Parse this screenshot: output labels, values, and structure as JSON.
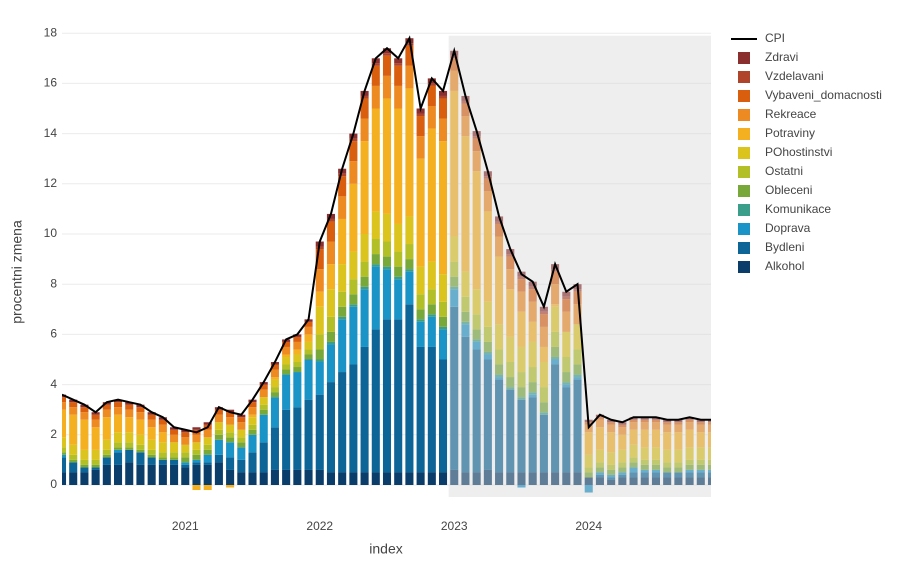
{
  "chart_data": {
    "type": "bar",
    "barmode": "relative",
    "x_title": "index",
    "y_title": "procentni zmena",
    "x": [
      "2020-02",
      "2020-03",
      "2020-04",
      "2020-05",
      "2020-06",
      "2020-07",
      "2020-08",
      "2020-09",
      "2020-10",
      "2020-11",
      "2020-12",
      "2021-01",
      "2021-02",
      "2021-03",
      "2021-04",
      "2021-05",
      "2021-06",
      "2021-07",
      "2021-08",
      "2021-09",
      "2021-10",
      "2021-11",
      "2021-12",
      "2022-01",
      "2022-02",
      "2022-03",
      "2022-04",
      "2022-05",
      "2022-06",
      "2022-07",
      "2022-08",
      "2022-09",
      "2022-10",
      "2022-11",
      "2022-12",
      "2023-01",
      "2023-02",
      "2023-03",
      "2023-04",
      "2023-05",
      "2023-06",
      "2023-07",
      "2023-08",
      "2023-09",
      "2023-10",
      "2023-11",
      "2023-12",
      "2024-01",
      "2024-02",
      "2024-03",
      "2024-04",
      "2024-05",
      "2024-06",
      "2024-07",
      "2024-08",
      "2024-09",
      "2024-10",
      "2024-11",
      "2024-12"
    ],
    "xlim": [
      "2020-02",
      "2024-12"
    ],
    "xticks": [
      {
        "value": "2021-01",
        "label": "2021"
      },
      {
        "value": "2022-01",
        "label": "2022"
      },
      {
        "value": "2023-01",
        "label": "2023"
      },
      {
        "value": "2024-01",
        "label": "2024"
      }
    ],
    "ylim": [
      -0.6,
      18.2
    ],
    "yticks": [
      0,
      2,
      4,
      6,
      8,
      10,
      12,
      14,
      16,
      18
    ],
    "grid": true,
    "shade_from": "2023-01",
    "legend": "right",
    "series": [
      {
        "name": "Alkohol",
        "color": "#0b3d6b",
        "values": [
          0.5,
          0.5,
          0.5,
          0.6,
          0.8,
          0.8,
          0.9,
          0.8,
          0.8,
          0.8,
          0.8,
          0.7,
          0.8,
          0.8,
          0.9,
          0.6,
          0.5,
          0.5,
          0.5,
          0.6,
          0.6,
          0.6,
          0.6,
          0.6,
          0.5,
          0.5,
          0.5,
          0.5,
          0.5,
          0.5,
          0.5,
          0.5,
          0.5,
          0.5,
          0.5,
          0.6,
          0.5,
          0.5,
          0.6,
          0.5,
          0.5,
          0.5,
          0.5,
          0.5,
          0.5,
          0.5,
          0.5,
          0.3,
          0.3,
          0.2,
          0.3,
          0.3,
          0.3,
          0.3,
          0.3,
          0.3,
          0.3,
          0.3,
          0.3
        ]
      },
      {
        "name": "Bydleni",
        "color": "#0d6496",
        "values": [
          0.6,
          0.4,
          0.2,
          0.1,
          0.3,
          0.5,
          0.5,
          0.5,
          0.3,
          0.2,
          0.2,
          0.1,
          0.1,
          0.1,
          0.3,
          0.5,
          0.5,
          0.8,
          1.2,
          1.7,
          2.4,
          2.5,
          2.8,
          3.0,
          3.6,
          4.0,
          4.3,
          5.0,
          5.7,
          6.1,
          6.1,
          6.7,
          5.0,
          5.0,
          4.5,
          6.5,
          5.4,
          4.9,
          4.4,
          3.7,
          3.3,
          2.9,
          3.0,
          2.3,
          4.3,
          3.4,
          3.7,
          0.0,
          0.1,
          0.1,
          0.1,
          0.2,
          0.2,
          0.2,
          0.2,
          0.2,
          0.2,
          0.2,
          0.2
        ]
      },
      {
        "name": "Doprava",
        "color": "#1a93c6",
        "values": [
          0.1,
          0,
          0,
          0,
          0,
          0.1,
          0,
          0,
          0,
          0,
          0,
          0.1,
          0.1,
          0.3,
          0.6,
          0.6,
          0.5,
          0.7,
          1.1,
          1.2,
          1.4,
          1.4,
          1.6,
          1.3,
          1.5,
          2.1,
          2.3,
          2.3,
          2.5,
          2.0,
          1.6,
          1.3,
          1.0,
          1.2,
          1.2,
          0.7,
          0.5,
          0.3,
          0.2,
          0.1,
          0,
          -0.1,
          0.1,
          0,
          0.2,
          0.1,
          0.1,
          -0.3,
          0.1,
          0.1,
          0.1,
          0.2,
          0.1,
          0.1,
          0,
          0,
          0.1,
          0.1,
          0.1
        ]
      },
      {
        "name": "Komunikace",
        "color": "#3a9e8a",
        "values": [
          0,
          0,
          0,
          0,
          0,
          0,
          0,
          0,
          0,
          0,
          0,
          0,
          0,
          0,
          0,
          0,
          0,
          0,
          0,
          0,
          0,
          0,
          0,
          0.1,
          0.1,
          0.1,
          0.1,
          0.1,
          0.1,
          0.1,
          0.1,
          0.1,
          0.1,
          0.1,
          0.1,
          0.1,
          0.1,
          0.1,
          0.1,
          0.1,
          0.1,
          0.1,
          0.1,
          0.1,
          0.1,
          0.1,
          0.1,
          0,
          0,
          0,
          0,
          0,
          0,
          0,
          0,
          0,
          0,
          0,
          0
        ]
      },
      {
        "name": "Obleceni",
        "color": "#78a83a",
        "values": [
          0.1,
          0.1,
          0.1,
          0.1,
          0.1,
          0.1,
          0.1,
          0.1,
          0.1,
          0.1,
          0.1,
          0.2,
          0.2,
          0.2,
          0.2,
          0.2,
          0.2,
          0.2,
          0.2,
          0.2,
          0.2,
          0.2,
          0.2,
          0.4,
          0.4,
          0.4,
          0.4,
          0.4,
          0.4,
          0.4,
          0.4,
          0.4,
          0.4,
          0.4,
          0.4,
          0.4,
          0.4,
          0.4,
          0.4,
          0.4,
          0.4,
          0.4,
          0.4,
          0.4,
          0.4,
          0.4,
          0.4,
          0.2,
          0.2,
          0.2,
          0.2,
          0.2,
          0.2,
          0.2,
          0.2,
          0.2,
          0.2,
          0.2,
          0.2
        ]
      },
      {
        "name": "Ostatni",
        "color": "#b2bf26",
        "values": [
          0.2,
          0.2,
          0.2,
          0.2,
          0.2,
          0.2,
          0.2,
          0.2,
          0.2,
          0.2,
          0.2,
          0.2,
          0.2,
          0.2,
          0.2,
          0.2,
          0.2,
          0.2,
          0.2,
          0.2,
          0.2,
          0.2,
          0.2,
          0.6,
          0.6,
          0.6,
          0.6,
          0.6,
          0.6,
          0.6,
          0.6,
          0.6,
          0.6,
          0.6,
          0.6,
          0.6,
          0.6,
          0.6,
          0.6,
          0.6,
          0.6,
          0.6,
          0.6,
          0.6,
          0.6,
          0.6,
          0.6,
          0.2,
          0.2,
          0.2,
          0.2,
          0.2,
          0.2,
          0.2,
          0.2,
          0.2,
          0.2,
          0.2,
          0.2
        ]
      },
      {
        "name": "POhostinstvi",
        "color": "#dcc41f",
        "values": [
          0.4,
          0.4,
          0.4,
          0.4,
          0.4,
          0.4,
          0.4,
          0.4,
          0.4,
          0.4,
          0.4,
          0.3,
          0.3,
          0.3,
          0.3,
          0.3,
          0.3,
          0.3,
          0.3,
          0.3,
          0.3,
          0.3,
          0.3,
          1.1,
          1.1,
          1.1,
          1.1,
          1.1,
          1.1,
          1.1,
          1.1,
          1.1,
          1.1,
          1.1,
          1.1,
          1.0,
          1.0,
          1.0,
          1.0,
          1.0,
          1.0,
          1.0,
          1.0,
          1.0,
          1.0,
          1.0,
          1.0,
          0.5,
          0.5,
          0.5,
          0.5,
          0.5,
          0.5,
          0.5,
          0.5,
          0.5,
          0.5,
          0.5,
          0.5
        ]
      },
      {
        "name": "Potraviny",
        "color": "#f5b021",
        "values": [
          1.1,
          1.2,
          1.2,
          0.9,
          0.9,
          0.7,
          0.6,
          0.6,
          0.5,
          0.4,
          0,
          0,
          -0.2,
          -0.2,
          0,
          -0.1,
          0,
          0.1,
          0,
          0.1,
          0.1,
          0.2,
          0.3,
          0.6,
          1.0,
          1.8,
          2.7,
          3.7,
          4.1,
          4.6,
          4.6,
          5.1,
          4.3,
          5.3,
          5.3,
          5.8,
          5.4,
          4.7,
          3.6,
          2.7,
          1.9,
          1.4,
          0.8,
          0.6,
          0.1,
          0,
          0,
          0.9,
          0.9,
          0.8,
          0.6,
          0.6,
          0.7,
          0.7,
          0.7,
          0.7,
          0.7,
          0.6,
          0.6
        ]
      },
      {
        "name": "Rekreace",
        "color": "#ee8a22",
        "values": [
          0.3,
          0.3,
          0.3,
          0.3,
          0.3,
          0.3,
          0.3,
          0.3,
          0.3,
          0.3,
          0.3,
          0.3,
          0.3,
          0.3,
          0.3,
          0.3,
          0.3,
          0.3,
          0.3,
          0.3,
          0.3,
          0.3,
          0.3,
          0.9,
          0.9,
          0.9,
          0.9,
          0.9,
          0.9,
          0.9,
          0.9,
          0.9,
          0.9,
          0.9,
          0.9,
          0.8,
          0.8,
          0.8,
          0.8,
          0.8,
          0.8,
          0.8,
          0.8,
          0.8,
          0.8,
          0.8,
          0.8,
          0.3,
          0.3,
          0.3,
          0.3,
          0.3,
          0.3,
          0.3,
          0.3,
          0.3,
          0.3,
          0.3,
          0.3
        ]
      },
      {
        "name": "Vybaveni_domacnosti",
        "color": "#d95f0e",
        "values": [
          0.2,
          0.2,
          0.2,
          0.2,
          0.2,
          0.2,
          0.2,
          0.2,
          0.2,
          0.2,
          0.2,
          0.2,
          0.2,
          0.2,
          0.2,
          0.2,
          0.2,
          0.2,
          0.2,
          0.2,
          0.2,
          0.2,
          0.2,
          0.8,
          0.8,
          0.8,
          0.8,
          0.8,
          0.8,
          0.8,
          0.8,
          0.8,
          0.8,
          0.8,
          0.8,
          0.5,
          0.5,
          0.5,
          0.5,
          0.5,
          0.5,
          0.5,
          0.5,
          0.5,
          0.5,
          0.5,
          0.5,
          0.1,
          0.1,
          0.1,
          0.1,
          0.1,
          0.1,
          0.1,
          0.1,
          0.1,
          0.1,
          0.1,
          0.1
        ]
      },
      {
        "name": "Vzdelavani",
        "color": "#b0442a",
        "values": [
          0,
          0,
          0,
          0,
          0,
          0,
          0,
          0,
          0,
          0,
          0,
          0,
          0,
          0,
          0,
          0,
          0,
          0,
          0,
          0,
          0,
          0,
          0,
          0.1,
          0.1,
          0.1,
          0.1,
          0.1,
          0.1,
          0.1,
          0.1,
          0.1,
          0.1,
          0.1,
          0.1,
          0.1,
          0.1,
          0.1,
          0.1,
          0.1,
          0.1,
          0.1,
          0.1,
          0.1,
          0.1,
          0.1,
          0.1,
          0,
          0,
          0,
          0,
          0,
          0,
          0,
          0,
          0,
          0,
          0,
          0
        ]
      },
      {
        "name": "Zdravi",
        "color": "#8b2e2e",
        "values": [
          0.1,
          0.1,
          0.1,
          0.1,
          0.1,
          0.1,
          0.1,
          0.1,
          0.1,
          0.1,
          0.1,
          0.1,
          0.1,
          0.1,
          0.1,
          0.1,
          0.1,
          0.1,
          0.1,
          0.1,
          0.1,
          0.1,
          0.1,
          0.2,
          0.2,
          0.2,
          0.2,
          0.2,
          0.2,
          0.2,
          0.2,
          0.2,
          0.2,
          0.2,
          0.2,
          0.2,
          0.2,
          0.2,
          0.2,
          0.2,
          0.2,
          0.2,
          0.2,
          0.2,
          0.2,
          0.2,
          0.2,
          0.1,
          0.1,
          0.1,
          0.1,
          0.1,
          0.1,
          0.1,
          0.1,
          0.1,
          0.1,
          0.1,
          0.1
        ]
      }
    ],
    "line": {
      "name": "CPI",
      "color": "#000000",
      "values": [
        3.6,
        3.4,
        3.2,
        2.9,
        3.3,
        3.4,
        3.3,
        3.2,
        2.9,
        2.7,
        2.3,
        2.2,
        2.1,
        2.3,
        3.1,
        2.9,
        2.8,
        3.4,
        4.1,
        4.9,
        5.8,
        6.0,
        6.6,
        9.7,
        10.8,
        12.6,
        14.0,
        15.7,
        17.0,
        17.4,
        17.0,
        17.8,
        15.0,
        16.2,
        15.7,
        17.3,
        15.5,
        14.1,
        12.5,
        10.7,
        9.4,
        8.4,
        8.1,
        7.1,
        8.8,
        7.7,
        8.0,
        2.3,
        2.8,
        2.6,
        2.5,
        2.7,
        2.7,
        2.7,
        2.6,
        2.6,
        2.7,
        2.6,
        2.6
      ]
    }
  }
}
